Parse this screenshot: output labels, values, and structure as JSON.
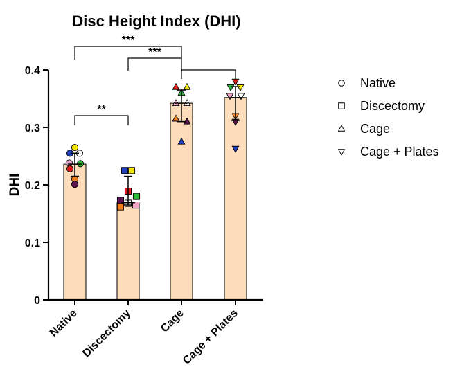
{
  "chart_data": {
    "type": "bar",
    "title": "Disc Height Index (DHI)",
    "xlabel": "",
    "ylabel": "DHI",
    "ylim": [
      0,
      0.4
    ],
    "yticks": [
      "0",
      "0.1",
      "0.2",
      "0.3",
      "0.4"
    ],
    "ytick_values": [
      0,
      0.1,
      0.2,
      0.3,
      0.4
    ],
    "grid": false,
    "legend_position": "right",
    "bar_color": "#fddcbc",
    "categories": [
      "Native",
      "Discectomy",
      "Cage",
      "Cage + Plates"
    ],
    "markers": [
      "circle",
      "square",
      "triangle-up",
      "triangle-down"
    ],
    "values": [
      0.236,
      0.169,
      0.342,
      0.352
    ],
    "error_upper": [
      0.255,
      0.215,
      0.365,
      0.371
    ],
    "error_lower": [
      0.215,
      0.165,
      0.31,
      0.312
    ],
    "points": [
      [
        {
          "y": 0.265,
          "color": "#f5e60a",
          "dx": 0
        },
        {
          "y": 0.255,
          "color": "#1f3fbf",
          "dx": -7
        },
        {
          "y": 0.255,
          "color": "#ffffff",
          "dx": 7
        },
        {
          "y": 0.238,
          "color": "#d9a6c9",
          "dx": -8
        },
        {
          "y": 0.237,
          "color": "#2bb43a",
          "dx": 8
        },
        {
          "y": 0.228,
          "color": "#e01b1b",
          "dx": -7
        },
        {
          "y": 0.21,
          "color": "#f2801f",
          "dx": 0
        },
        {
          "y": 0.201,
          "color": "#5c1450",
          "dx": 0
        }
      ],
      [
        {
          "y": 0.225,
          "color": "#1f3fbf",
          "dx": -5
        },
        {
          "y": 0.225,
          "color": "#f5e60a",
          "dx": 5
        },
        {
          "y": 0.189,
          "color": "#e01b1b",
          "dx": 0
        },
        {
          "y": 0.18,
          "color": "#2bb43a",
          "dx": 12
        },
        {
          "y": 0.173,
          "color": "#5c1450",
          "dx": -11
        },
        {
          "y": 0.168,
          "color": "#ffffff",
          "dx": 0
        },
        {
          "y": 0.165,
          "color": "#f7a8c8",
          "dx": 11
        },
        {
          "y": 0.162,
          "color": "#f2801f",
          "dx": -11
        }
      ],
      [
        {
          "y": 0.37,
          "color": "#e01b1b",
          "dx": -8
        },
        {
          "y": 0.37,
          "color": "#f5e60a",
          "dx": 8
        },
        {
          "y": 0.36,
          "color": "#2bb43a",
          "dx": 0
        },
        {
          "y": 0.342,
          "color": "#f7a8c8",
          "dx": -8
        },
        {
          "y": 0.342,
          "color": "#ffffff",
          "dx": 8
        },
        {
          "y": 0.315,
          "color": "#f2801f",
          "dx": -8
        },
        {
          "y": 0.31,
          "color": "#5c1450",
          "dx": 8
        },
        {
          "y": 0.275,
          "color": "#1f3fbf",
          "dx": 0
        }
      ],
      [
        {
          "y": 0.38,
          "color": "#e01b1b",
          "dx": 0
        },
        {
          "y": 0.37,
          "color": "#2bb43a",
          "dx": -7
        },
        {
          "y": 0.37,
          "color": "#f5e60a",
          "dx": 7
        },
        {
          "y": 0.355,
          "color": "#f7a8c8",
          "dx": -8
        },
        {
          "y": 0.355,
          "color": "#ffffff",
          "dx": 8
        },
        {
          "y": 0.32,
          "color": "#f2801f",
          "dx": 0
        },
        {
          "y": 0.31,
          "color": "#5c1450",
          "dx": 0
        },
        {
          "y": 0.263,
          "color": "#1f3fbf",
          "dx": 0
        }
      ]
    ],
    "significance": [
      {
        "from": 0,
        "to": 2,
        "label": "***"
      },
      {
        "from": 1,
        "to": 2,
        "label": "***"
      },
      {
        "from": 2,
        "to": 3,
        "label": ""
      },
      {
        "from": 0,
        "to": 1,
        "label": "**"
      }
    ],
    "legend": [
      {
        "label": "Native",
        "marker": "circle"
      },
      {
        "label": "Discectomy",
        "marker": "square"
      },
      {
        "label": "Cage",
        "marker": "triangle-up"
      },
      {
        "label": "Cage + Plates",
        "marker": "triangle-down"
      }
    ]
  }
}
